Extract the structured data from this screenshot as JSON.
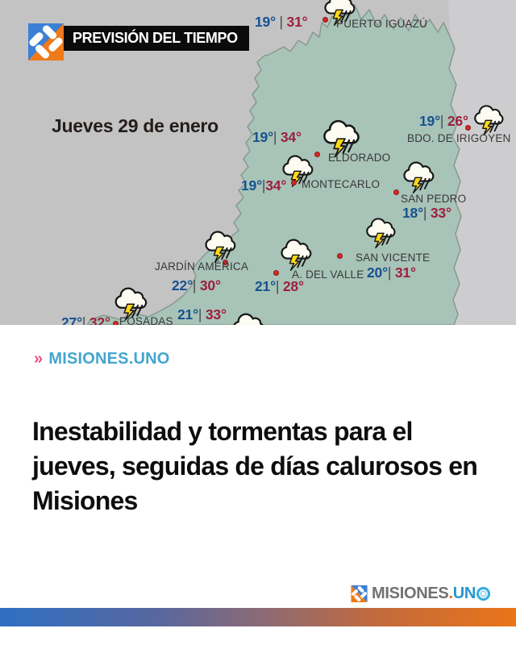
{
  "header": {
    "banner_label": "PREVISIÓN DEL TIEMPO",
    "date_label": "Jueves 29 de enero"
  },
  "map": {
    "region": "Misiones",
    "colors": {
      "province": "#a8c3b8",
      "background": "#c3c3c4",
      "neighbor_east": "#cdcdcf",
      "temp_min_blue": "#17518f",
      "temp_max_red": "#9c1f3f",
      "marker_red": "#d32b28"
    },
    "weather_icon": "storm-cloud-lightning-rain",
    "cities": [
      {
        "id": "puerto-iguazu",
        "label": "PUERTO IGUAZÚ",
        "tmin": "19°",
        "sep": " | ",
        "tmax": "31°",
        "pos": {
          "cloud": [
            398,
            -10,
            46
          ],
          "dot": [
            403,
            24
          ],
          "label": [
            417,
            22
          ],
          "temps": [
            316,
            17
          ]
        }
      },
      {
        "id": "bdo-de-irigoyen",
        "label": "BDO. DE IRIGOYEN",
        "tmin": "19°",
        "sep": "| ",
        "tmax": "26°",
        "pos": {
          "cloud": [
            584,
            128,
            44
          ],
          "dot": [
            580,
            158
          ],
          "label": [
            505,
            164
          ],
          "temps": [
            520,
            140
          ]
        }
      },
      {
        "id": "eldorado",
        "label": "ELDORADO",
        "tmin": "19°",
        "sep": "| ",
        "tmax": "34°",
        "pos": {
          "cloud": [
            396,
            146,
            54
          ],
          "dot": [
            393,
            191
          ],
          "label": [
            407,
            188
          ],
          "temps": [
            313,
            160
          ]
        }
      },
      {
        "id": "montecarlo",
        "label": "MONTECARLO",
        "tmin": "19°",
        "sep": "|",
        "tmax": "34°",
        "pos": {
          "cloud": [
            346,
            190,
            46
          ],
          "dot": [
            364,
            226
          ],
          "label": [
            374,
            221
          ],
          "temps": [
            299,
            220
          ]
        }
      },
      {
        "id": "san-pedro",
        "label": "SAN PEDRO",
        "tmin": "18°",
        "sep": "| ",
        "tmax": "33°",
        "pos": {
          "cloud": [
            496,
            198,
            46
          ],
          "dot": [
            491,
            238
          ],
          "label": [
            497,
            239
          ],
          "temps": [
            499,
            254
          ]
        }
      },
      {
        "id": "san-vicente",
        "label": "SAN VICENTE",
        "tmin": "20°",
        "sep": "| ",
        "tmax": "31°",
        "pos": {
          "cloud": [
            450,
            268,
            44
          ],
          "dot": [
            421,
            317
          ],
          "label": [
            441,
            312
          ],
          "temps": [
            455,
            328
          ]
        }
      },
      {
        "id": "jardin-america",
        "label": "JARDÍN AMÉRICA",
        "tmin": "22°",
        "sep": "| ",
        "tmax": "30°",
        "pos": {
          "cloud": [
            250,
            284,
            46
          ],
          "dot": [
            279,
            325
          ],
          "label": [
            192,
            323
          ],
          "temps": [
            213,
            344
          ]
        }
      },
      {
        "id": "a-del-valle",
        "label": "A. DEL VALLE",
        "tmin": "21°",
        "sep": "| ",
        "tmax": "28°",
        "pos": {
          "cloud": [
            344,
            294,
            46
          ],
          "dot": [
            342,
            338
          ],
          "label": [
            362,
            333
          ],
          "temps": [
            316,
            345
          ]
        }
      },
      {
        "id": "posadas",
        "label": "POSADAS",
        "tmin": "27°",
        "sep": "| ",
        "tmax": "32°",
        "pos": {
          "cloud": [
            138,
            354,
            48
          ],
          "dot": [
            143,
            401
          ],
          "label": [
            148,
            391
          ],
          "temps": [
            76,
            390
          ]
        }
      },
      {
        "id": "south-partial",
        "label": "",
        "tmin": "21°",
        "sep": "| ",
        "tmax": "33°",
        "pos": {
          "cloud": [
            284,
            386,
            48
          ],
          "temps": [
            220,
            380
          ]
        }
      }
    ]
  },
  "article": {
    "source_chevron": "»",
    "source_tag": "MISIONES.UNO",
    "headline": "Inestabilidad y tormentas para el jueves, seguidas de días calurosos en Misiones"
  },
  "footer": {
    "brand_name": "MISIONES",
    "brand_dot": ".",
    "brand_suffix": "UN"
  }
}
